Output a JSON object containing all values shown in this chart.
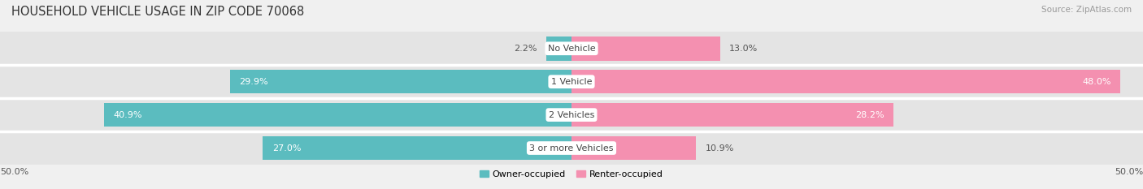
{
  "title": "HOUSEHOLD VEHICLE USAGE IN ZIP CODE 70068",
  "source": "Source: ZipAtlas.com",
  "categories": [
    "3 or more Vehicles",
    "2 Vehicles",
    "1 Vehicle",
    "No Vehicle"
  ],
  "owner_values": [
    27.0,
    40.9,
    29.9,
    2.2
  ],
  "renter_values": [
    10.9,
    28.2,
    48.0,
    13.0
  ],
  "owner_color": "#5bbcbf",
  "renter_color": "#f490b0",
  "owner_label": "Owner-occupied",
  "renter_label": "Renter-occupied",
  "xlim": [
    -50,
    50
  ],
  "background_color": "#f0f0f0",
  "bar_bg_color": "#e4e4e4",
  "title_fontsize": 10.5,
  "source_fontsize": 7.5,
  "value_fontsize": 8,
  "category_fontsize": 8,
  "bar_height": 0.72
}
